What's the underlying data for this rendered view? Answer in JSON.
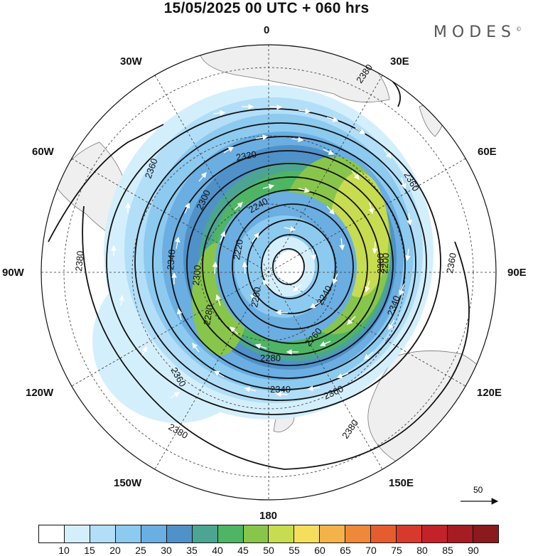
{
  "title": "15/05/2025  00 UTC  + 060 hrs",
  "brand": "MODES",
  "brand_mark": "©",
  "longitude_labels": [
    "0",
    "30E",
    "60E",
    "90E",
    "120E",
    "150E",
    "180",
    "150W",
    "120W",
    "90W",
    "60W",
    "30W"
  ],
  "contour_labels": [
    "2380",
    "2360",
    "2320",
    "2300",
    "2240",
    "2220",
    "2200",
    "2340",
    "2300",
    "2240",
    "2260",
    "2280",
    "2280",
    "2200",
    "2340",
    "2360",
    "2380",
    "2360",
    "2380",
    "2380",
    "2360",
    "2340",
    "2300",
    "2360"
  ],
  "vector_reference": "50",
  "colorbar": {
    "ticks": [
      "10",
      "15",
      "20",
      "25",
      "30",
      "35",
      "40",
      "45",
      "50",
      "55",
      "60",
      "65",
      "70",
      "75",
      "80",
      "85",
      "90"
    ],
    "colors": [
      "#ffffff",
      "#d4effc",
      "#b2def8",
      "#8ccaf0",
      "#6aaee2",
      "#4f91c8",
      "#4ba592",
      "#4eb564",
      "#88c64b",
      "#c7dc4e",
      "#f5de5c",
      "#f4b34a",
      "#ef8838",
      "#e55d2f",
      "#d73a2c",
      "#c4222a",
      "#a51c22",
      "#8a1a1c"
    ]
  }
}
